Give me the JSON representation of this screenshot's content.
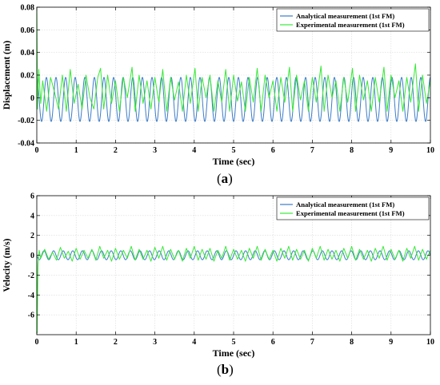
{
  "chart_data": [
    {
      "type": "line",
      "panel_label": "a",
      "xlabel": "Time (sec)",
      "ylabel": "Displacement (m)",
      "xlim": [
        0,
        10
      ],
      "ylim": [
        -0.04,
        0.08
      ],
      "x_ticks": [
        0,
        1,
        2,
        3,
        4,
        5,
        6,
        7,
        8,
        9,
        10
      ],
      "y_ticks": [
        -0.04,
        -0.02,
        0,
        0.02,
        0.04,
        0.06,
        0.08
      ],
      "x_tick_labels": [
        "0",
        "1",
        "2",
        "3",
        "4",
        "5",
        "6",
        "7",
        "8",
        "9",
        "10"
      ],
      "y_tick_labels": [
        "-0.04",
        "-0.02",
        "0",
        "0.02",
        "0.04",
        "0.06",
        "0.08"
      ],
      "grid": true,
      "legend_position": "top-right",
      "series": [
        {
          "name": "Analytical measurement (1st FM)",
          "color": "#3c7cc8",
          "sinusoid": {
            "frequency_hz": 4.1,
            "amplitude": 0.0195,
            "offset": -0.0015,
            "phase": 0
          }
        },
        {
          "name": "Experimental measurement (1st FM)",
          "color": "#38e838",
          "x": [
            0,
            0.02,
            0.05,
            0.1,
            0.15,
            0.25,
            0.35,
            0.45,
            0.55,
            0.65,
            0.75,
            0.85,
            0.95,
            1.05,
            1.15,
            1.25,
            1.35,
            1.45,
            1.55,
            1.62,
            1.7,
            1.8,
            1.9,
            2.0,
            2.1,
            2.2,
            2.3,
            2.42,
            2.5,
            2.6,
            2.7,
            2.8,
            2.9,
            3.0,
            3.1,
            3.2,
            3.3,
            3.4,
            3.5,
            3.6,
            3.7,
            3.8,
            3.9,
            4.02,
            4.1,
            4.2,
            4.3,
            4.4,
            4.5,
            4.6,
            4.7,
            4.8,
            4.9,
            5.0,
            5.1,
            5.2,
            5.3,
            5.4,
            5.5,
            5.6,
            5.7,
            5.8,
            5.9,
            6.0,
            6.1,
            6.2,
            6.3,
            6.42,
            6.5,
            6.6,
            6.7,
            6.8,
            6.9,
            7.0,
            7.1,
            7.22,
            7.3,
            7.4,
            7.5,
            7.6,
            7.7,
            7.8,
            7.9,
            8.02,
            8.1,
            8.2,
            8.3,
            8.4,
            8.5,
            8.6,
            8.7,
            8.82,
            8.9,
            9.0,
            9.1,
            9.2,
            9.3,
            9.4,
            9.5,
            9.62,
            9.7,
            9.8,
            9.9,
            10.0
          ],
          "y": [
            0.078,
            -0.01,
            0.025,
            -0.005,
            0.015,
            -0.012,
            0.018,
            0.005,
            -0.01,
            0.02,
            -0.012,
            0.025,
            -0.005,
            0.012,
            -0.01,
            0.02,
            0.0,
            -0.01,
            0.018,
            0.026,
            -0.01,
            0.02,
            -0.005,
            0.015,
            -0.012,
            0.018,
            0.0,
            0.027,
            -0.012,
            0.02,
            -0.005,
            0.015,
            -0.01,
            0.018,
            -0.004,
            0.025,
            -0.012,
            0.018,
            -0.002,
            0.014,
            -0.012,
            0.02,
            -0.005,
            0.026,
            -0.012,
            0.018,
            0.0,
            0.02,
            -0.012,
            0.015,
            -0.004,
            0.025,
            -0.012,
            0.02,
            -0.003,
            0.014,
            -0.012,
            0.018,
            -0.004,
            0.026,
            -0.012,
            0.02,
            0.0,
            0.015,
            -0.012,
            0.018,
            -0.004,
            0.027,
            -0.012,
            0.02,
            -0.002,
            0.015,
            -0.012,
            0.018,
            -0.004,
            0.028,
            -0.012,
            0.02,
            0.0,
            0.015,
            -0.012,
            0.018,
            -0.004,
            0.026,
            -0.012,
            0.02,
            -0.002,
            0.015,
            -0.012,
            0.018,
            -0.004,
            0.027,
            -0.012,
            0.02,
            0.0,
            0.015,
            -0.012,
            0.018,
            -0.004,
            0.03,
            -0.012,
            0.02,
            -0.005,
            0.015
          ]
        }
      ]
    },
    {
      "type": "line",
      "panel_label": "b",
      "xlabel": "Time (sec)",
      "ylabel": "Velocity (m/s)",
      "xlim": [
        0,
        10
      ],
      "ylim": [
        -8,
        6
      ],
      "x_ticks": [
        0,
        1,
        2,
        3,
        4,
        5,
        6,
        7,
        8,
        9,
        10
      ],
      "y_ticks": [
        -6,
        -4,
        -2,
        0,
        2,
        4,
        6
      ],
      "x_tick_labels": [
        "0",
        "1",
        "2",
        "3",
        "4",
        "5",
        "6",
        "7",
        "8",
        "9",
        "10"
      ],
      "y_tick_labels": [
        "-6",
        "-4",
        "-2",
        "0",
        "2",
        "4",
        "6"
      ],
      "grid": true,
      "legend_position": "top-right",
      "series": [
        {
          "name": "Analytical measurement (1st FM)",
          "color": "#3c7cc8",
          "sinusoid": {
            "frequency_hz": 4.1,
            "amplitude": 0.45,
            "offset": 0.0,
            "phase": 1.57
          }
        },
        {
          "name": "Experimental measurement (1st FM)",
          "color": "#38e838",
          "x": [
            0,
            0.01,
            0.03,
            0.06,
            0.1,
            0.2,
            0.3,
            0.4,
            0.5,
            0.6,
            0.7,
            0.8,
            0.9,
            1.0,
            1.1,
            1.2,
            1.3,
            1.4,
            1.5,
            1.6,
            1.7,
            1.8,
            1.9,
            2.0,
            2.1,
            2.2,
            2.3,
            2.4,
            2.5,
            2.6,
            2.7,
            2.8,
            2.9,
            3.0,
            3.1,
            3.2,
            3.3,
            3.4,
            3.5,
            3.6,
            3.7,
            3.8,
            3.9,
            4.0,
            4.1,
            4.2,
            4.3,
            4.4,
            4.5,
            4.6,
            4.7,
            4.8,
            4.9,
            5.0,
            5.1,
            5.2,
            5.3,
            5.4,
            5.5,
            5.6,
            5.7,
            5.8,
            5.9,
            6.0,
            6.1,
            6.2,
            6.3,
            6.4,
            6.5,
            6.6,
            6.7,
            6.8,
            6.9,
            7.0,
            7.1,
            7.2,
            7.3,
            7.4,
            7.5,
            7.6,
            7.7,
            7.8,
            7.9,
            8.0,
            8.1,
            8.2,
            8.3,
            8.4,
            8.5,
            8.6,
            8.7,
            8.8,
            8.9,
            9.0,
            9.1,
            9.2,
            9.3,
            9.4,
            9.5,
            9.6,
            9.7,
            9.8,
            9.9,
            10.0
          ],
          "y": [
            0.3,
            -7.8,
            -1.0,
            0.5,
            -0.3,
            0.6,
            -0.4,
            0.3,
            -0.5,
            0.8,
            -0.3,
            0.4,
            -0.6,
            0.7,
            -0.4,
            0.5,
            -0.3,
            0.6,
            -0.5,
            0.9,
            -0.3,
            0.5,
            -0.6,
            0.7,
            -0.4,
            0.5,
            -0.3,
            0.9,
            -0.5,
            0.6,
            -0.4,
            0.5,
            -0.6,
            0.8,
            -0.3,
            0.9,
            -0.5,
            0.6,
            -0.4,
            0.5,
            -0.6,
            0.7,
            -0.3,
            0.9,
            -0.5,
            0.6,
            -0.4,
            0.7,
            -0.6,
            0.5,
            -0.3,
            0.9,
            -0.5,
            0.6,
            -0.4,
            0.5,
            -0.6,
            0.7,
            -0.3,
            0.9,
            -0.5,
            0.6,
            -0.4,
            0.5,
            -0.6,
            0.7,
            -0.3,
            0.9,
            -0.5,
            0.6,
            -0.4,
            0.5,
            -0.6,
            0.7,
            -0.3,
            0.9,
            -0.5,
            0.6,
            -0.4,
            0.5,
            -0.6,
            0.7,
            -0.3,
            0.9,
            -0.5,
            0.6,
            -0.4,
            0.5,
            -0.6,
            0.7,
            -0.3,
            0.9,
            -0.5,
            0.6,
            -0.4,
            0.5,
            -0.6,
            0.7,
            -0.3,
            0.9,
            -0.5,
            0.6,
            -0.4,
            0.5
          ]
        }
      ]
    }
  ]
}
